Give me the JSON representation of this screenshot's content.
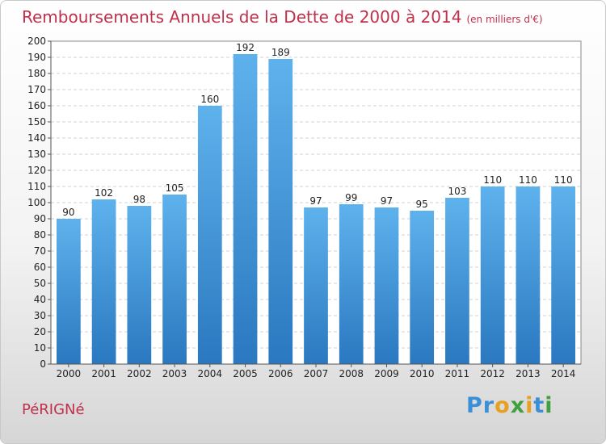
{
  "chart_data": {
    "type": "bar",
    "title": "Remboursements Annuels de la Dette de 2000 à 2014",
    "subtitle": "(en milliers d'€)",
    "categories": [
      "2000",
      "2001",
      "2002",
      "2003",
      "2004",
      "2005",
      "2006",
      "2007",
      "2008",
      "2009",
      "2010",
      "2011",
      "2012",
      "2013",
      "2014"
    ],
    "values": [
      90,
      102,
      98,
      105,
      160,
      192,
      189,
      97,
      99,
      97,
      95,
      103,
      110,
      110,
      110
    ],
    "ylim": [
      0,
      200
    ],
    "ytick_step": 10,
    "grid": true,
    "bar_color": "#4a9fe0",
    "data_labels": true
  },
  "footer": {
    "commune": "PéRIGNé",
    "logo_letters": [
      "P",
      "r",
      "o",
      "x",
      "i",
      "t",
      "i"
    ],
    "logo_colors": [
      "#3a8fd6",
      "#3a8fd6",
      "#e8a020",
      "#40a040",
      "#e8a020",
      "#3a8fd6",
      "#40a040"
    ]
  }
}
